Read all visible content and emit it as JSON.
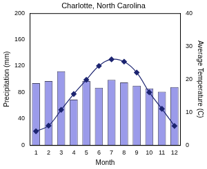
{
  "chart_data": {
    "type": "bar",
    "title": "Charlotte, North Carolina",
    "x_label": "Month",
    "y_label": "Precipitation (mm)",
    "y2_label": "Average Temperature (C)",
    "categories": [
      "1",
      "2",
      "3",
      "4",
      "5",
      "6",
      "7",
      "8",
      "9",
      "10",
      "11",
      "12"
    ],
    "series": [
      {
        "type": "bar",
        "color": "#9b9bea",
        "values": [
          94,
          97,
          112,
          69,
          97,
          87,
          99,
          95,
          90,
          86,
          81,
          88
        ]
      },
      {
        "type": "line",
        "axis": "y2",
        "color": "#1c2470",
        "marker": "diamond",
        "line_style": "solid",
        "values": [
          4.2,
          5.9,
          10.7,
          15.5,
          19.8,
          24.0,
          26.0,
          25.3,
          22.0,
          16.0,
          11.0,
          5.8
        ]
      }
    ],
    "ylim": [
      0,
      200
    ],
    "yticks": [
      0,
      40,
      80,
      120,
      160,
      200
    ],
    "y2lim": [
      0,
      40
    ],
    "y2ticks": [
      0,
      10,
      20,
      30,
      40
    ],
    "grid": false
  }
}
